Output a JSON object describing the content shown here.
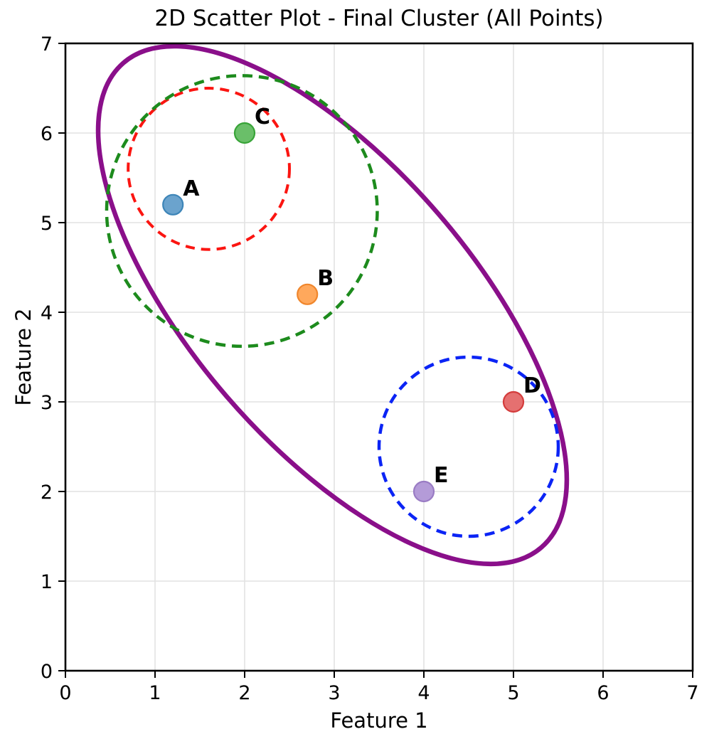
{
  "figure": {
    "background": "#ffffff",
    "spine_color": "#000000",
    "grid_color": "#e2e2e2",
    "tick_color": "#000000"
  },
  "chart_data": {
    "type": "scatter",
    "title": "2D Scatter Plot - Final Cluster (All Points)",
    "xlabel": "Feature 1",
    "ylabel": "Feature 2",
    "xlim": [
      0,
      7
    ],
    "ylim": [
      0,
      7
    ],
    "xticks": [
      0,
      1,
      2,
      3,
      4,
      5,
      6,
      7
    ],
    "yticks": [
      0,
      1,
      2,
      3,
      4,
      5,
      6,
      7
    ],
    "grid": true,
    "legend": "none",
    "points": [
      {
        "label": "A",
        "x": 1.2,
        "y": 5.2,
        "fill": "#6ba3cd",
        "edge": "#3d85b8"
      },
      {
        "label": "B",
        "x": 2.7,
        "y": 4.2,
        "fill": "#ffa85c",
        "edge": "#f0862c"
      },
      {
        "label": "C",
        "x": 2.0,
        "y": 6.0,
        "fill": "#6abf69",
        "edge": "#38a438"
      },
      {
        "label": "D",
        "x": 5.0,
        "y": 3.0,
        "fill": "#e57070",
        "edge": "#d43c3c"
      },
      {
        "label": "E",
        "x": 4.0,
        "y": 2.0,
        "fill": "#b49bd8",
        "edge": "#9a7cc4"
      }
    ],
    "cluster_circles": [
      {
        "name": "cluster-circle-red",
        "cx": 1.6,
        "cy": 5.6,
        "r": 0.9,
        "color": "#fb1511",
        "width": 4,
        "dash": "13 9"
      },
      {
        "name": "cluster-circle-green",
        "cx": 1.97,
        "cy": 5.13,
        "r": 1.51,
        "color": "#1d8b1d",
        "width": 4.5,
        "dash": "14 9"
      },
      {
        "name": "cluster-circle-blue",
        "cx": 4.5,
        "cy": 2.5,
        "r": 1.0,
        "color": "#0b24f5",
        "width": 4.5,
        "dash": "14 9"
      }
    ],
    "final_ellipse": {
      "name": "final-cluster-ellipse",
      "cx": 2.98,
      "cy": 4.08,
      "semi_major": 3.57,
      "semi_minor": 1.56,
      "angle_deg": -49.2,
      "color": "#8a0f8a",
      "width": 6.5
    }
  }
}
